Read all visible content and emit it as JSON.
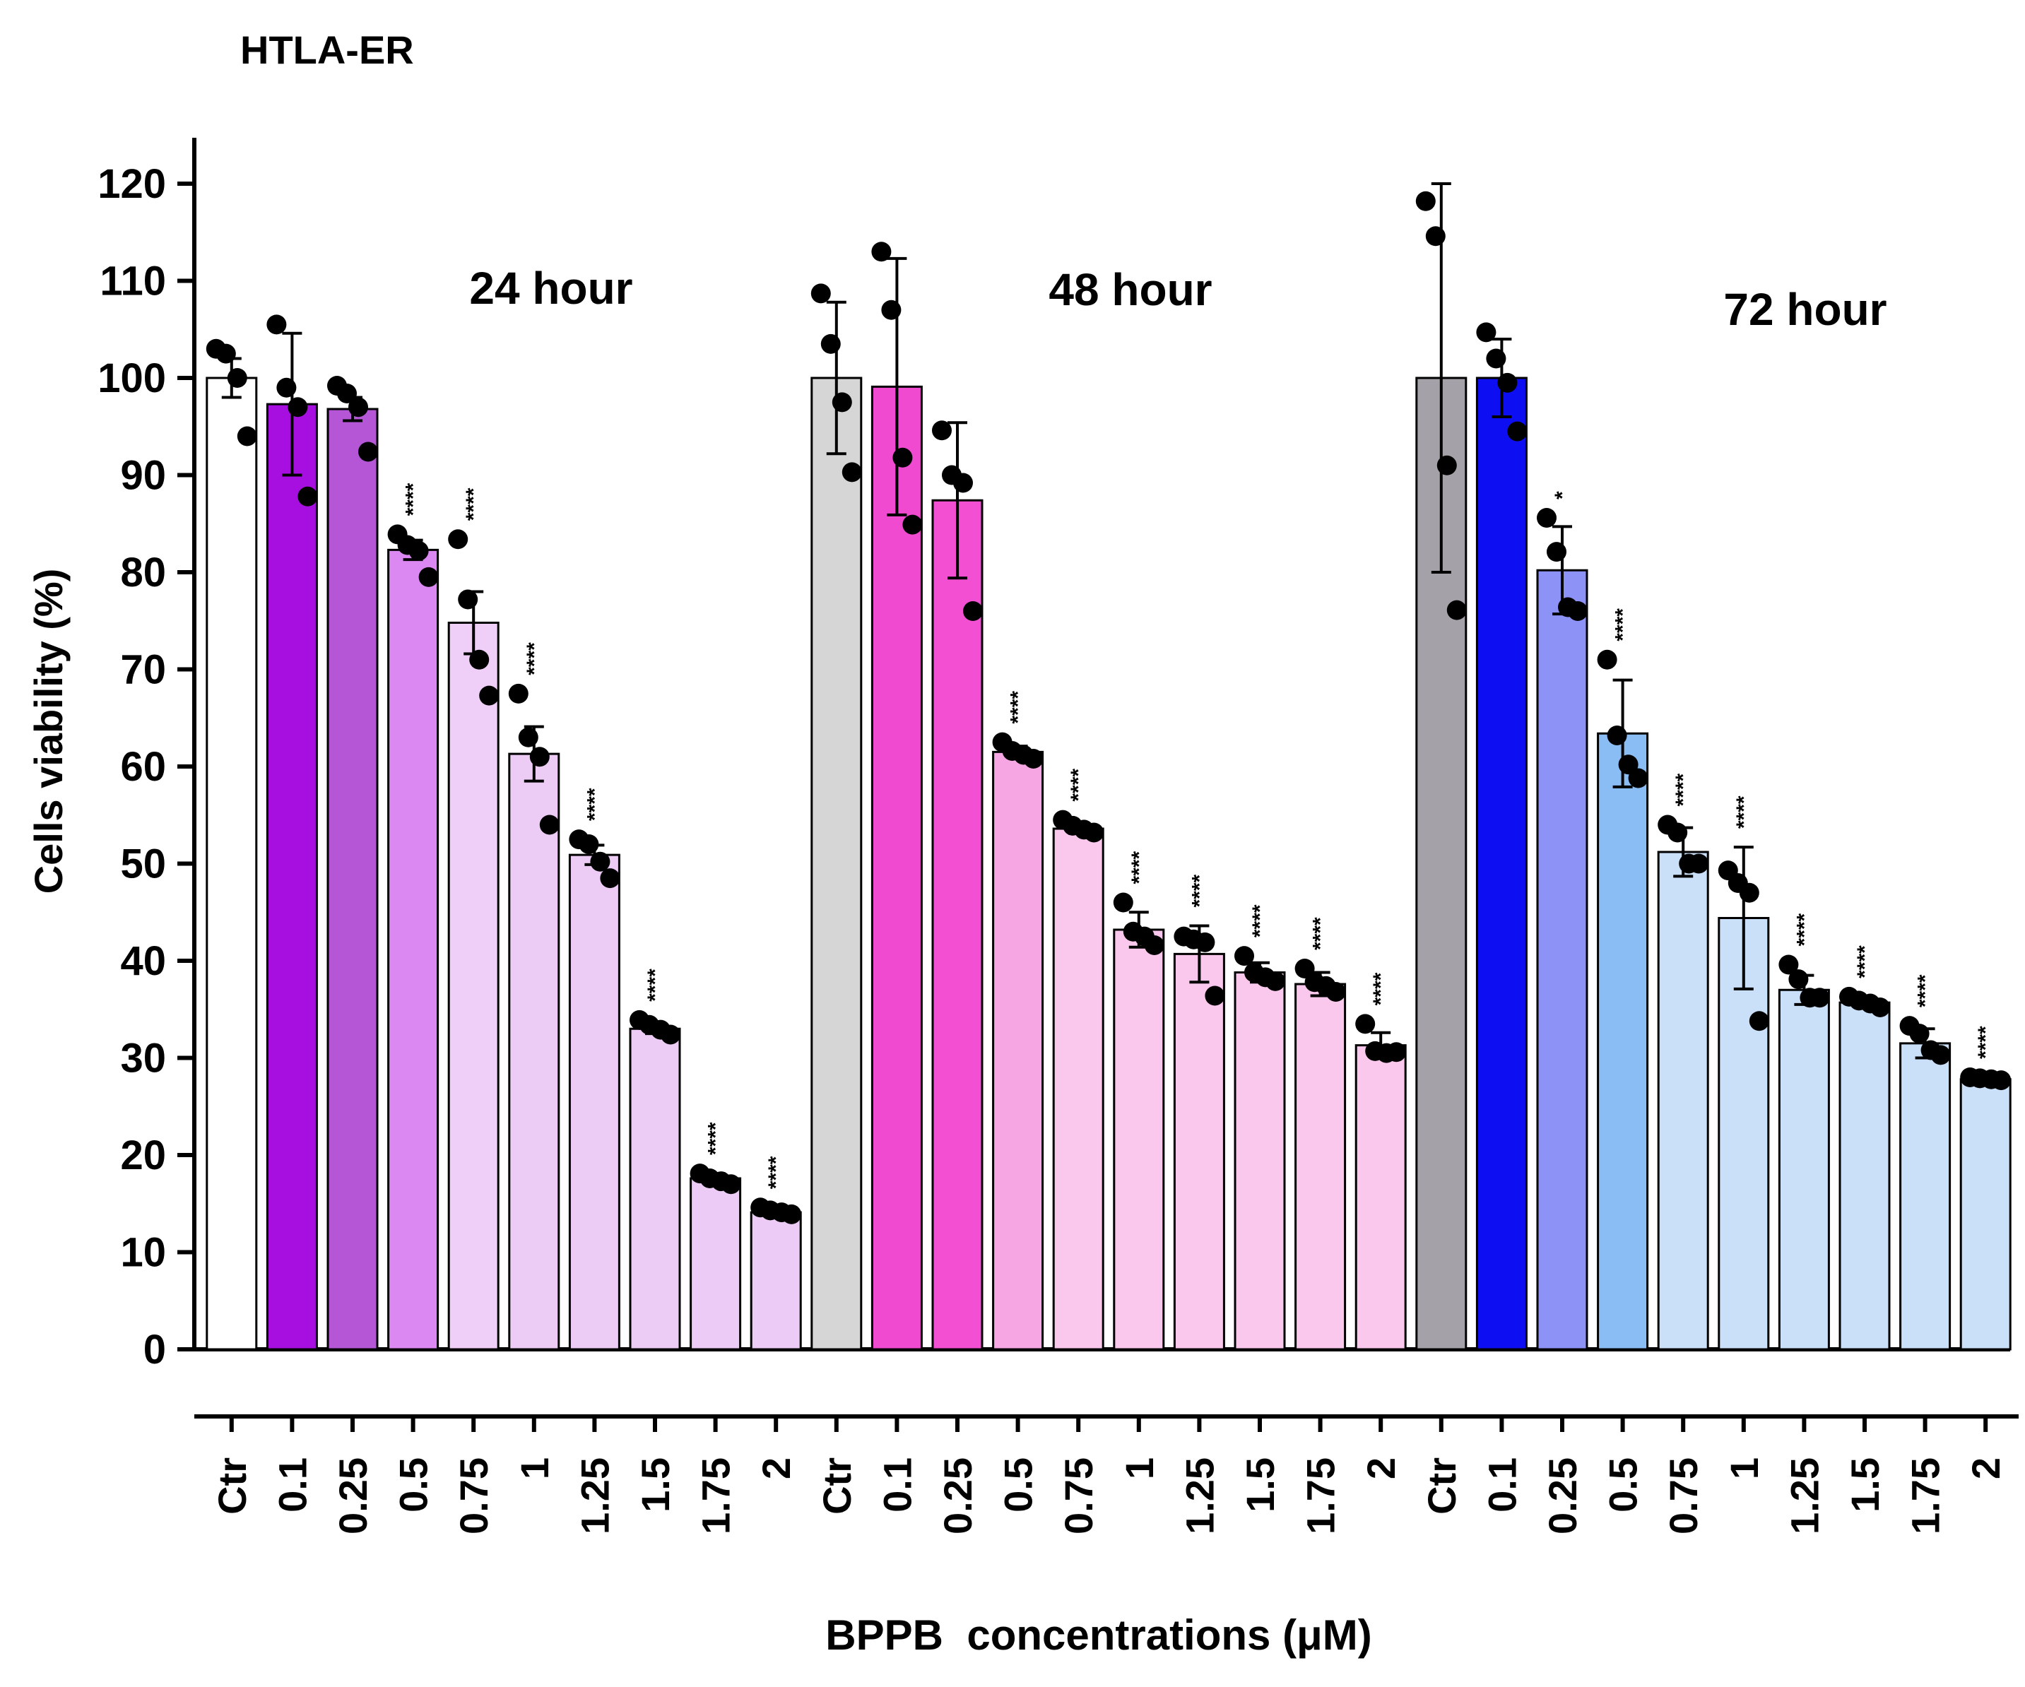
{
  "chart_data": {
    "type": "bar",
    "title": "HTLA-ER",
    "xlabel": "BPPB  concentrations (μM)",
    "ylabel": "Cells viability (%)",
    "ylim": [
      0,
      125
    ],
    "yticks": [
      0,
      10,
      20,
      30,
      40,
      50,
      60,
      70,
      80,
      90,
      100,
      110,
      120
    ],
    "error_bars": true,
    "individual_points": true,
    "groups": [
      {
        "label": "24 hour",
        "categories": [
          "Ctr",
          "0.1",
          "0.25",
          "0.5",
          "0.75",
          "1",
          "1.25",
          "1.5",
          "1.75",
          "2"
        ],
        "values": [
          100.0,
          97.3,
          96.8,
          82.3,
          74.8,
          61.3,
          50.9,
          33.0,
          17.6,
          14.1
        ],
        "errors": [
          2.0,
          7.3,
          1.2,
          1.0,
          3.2,
          2.8,
          1.0,
          0.5,
          0.5,
          0.3
        ],
        "significance": [
          "",
          "",
          "",
          "****",
          "****",
          "****",
          "****",
          "****",
          "****",
          "****"
        ],
        "colors": [
          "#ffffff",
          "#a60fdf",
          "#b556d6",
          "#dc88f2",
          "#efcef7",
          "#ecccf4",
          "#eccbf5",
          "#eccbf5",
          "#ecccf6",
          "#ecccf6"
        ],
        "points": [
          [
            103.0,
            102.5,
            100.0,
            94.0
          ],
          [
            105.5,
            99.0,
            97.0,
            87.8
          ],
          [
            99.2,
            98.4,
            97.0,
            92.4
          ],
          [
            83.9,
            82.8,
            82.2,
            79.5
          ],
          [
            83.4,
            77.2,
            71.0,
            67.3
          ],
          [
            67.5,
            63.0,
            61.0,
            54.0
          ],
          [
            52.5,
            52.0,
            50.2,
            48.5
          ],
          [
            33.9,
            33.4,
            32.9,
            32.4
          ],
          [
            18.1,
            17.6,
            17.3,
            17.0
          ],
          [
            14.6,
            14.3,
            14.1,
            13.9
          ]
        ]
      },
      {
        "label": "48 hour",
        "categories": [
          "Ctr",
          "0.1",
          "0.25",
          "0.5",
          "0.75",
          "1",
          "1.25",
          "1.5",
          "1.75",
          "2"
        ],
        "values": [
          100.0,
          99.1,
          87.4,
          61.5,
          53.6,
          43.2,
          40.7,
          38.8,
          37.6,
          31.3
        ],
        "errors": [
          7.8,
          13.2,
          8.0,
          0.6,
          0.5,
          1.8,
          2.9,
          1.0,
          1.2,
          1.3
        ],
        "significance": [
          "",
          "",
          "",
          "****",
          "****",
          "****",
          "****",
          "****",
          "****",
          "****"
        ],
        "colors": [
          "#d6d6d6",
          "#f04ad0",
          "#f24fd2",
          "#f6a6e3",
          "#f9c8ec",
          "#f9c8ec",
          "#f9c8ec",
          "#f9c8ec",
          "#f9c8ec",
          "#f9c8ec"
        ],
        "points": [
          [
            108.7,
            103.5,
            97.5,
            90.3
          ],
          [
            113.0,
            107.0,
            91.8,
            84.9
          ],
          [
            94.6,
            90.0,
            89.2,
            76.0
          ],
          [
            62.5,
            61.6,
            61.2,
            60.8
          ],
          [
            54.5,
            53.9,
            53.5,
            53.2
          ],
          [
            46.0,
            43.0,
            42.5,
            41.6
          ],
          [
            42.5,
            42.2,
            41.9,
            36.4
          ],
          [
            40.5,
            38.8,
            38.3,
            37.9
          ],
          [
            39.2,
            37.8,
            37.4,
            36.8
          ],
          [
            33.5,
            30.7,
            30.5,
            30.6
          ]
        ]
      },
      {
        "label": "72 hour",
        "categories": [
          "Ctr",
          "0.1",
          "0.25",
          "0.5",
          "0.75",
          "1",
          "1.25",
          "1.5",
          "1.75",
          "2"
        ],
        "values": [
          100.0,
          100.0,
          80.2,
          63.4,
          51.2,
          44.4,
          37.0,
          35.7,
          31.5,
          27.8
        ],
        "errors": [
          20.0,
          4.0,
          4.5,
          5.5,
          2.5,
          7.3,
          1.5,
          0.4,
          1.5,
          0.2
        ],
        "significance": [
          "",
          "",
          "*",
          "****",
          "****",
          "****",
          "****",
          "****",
          "****",
          "****"
        ],
        "colors": [
          "#a4a2a8",
          "#0e0ef2",
          "#8d92f7",
          "#8bbdf5",
          "#cae0f9",
          "#cae0f9",
          "#cae0f9",
          "#cae0f9",
          "#cae0f9",
          "#cae0f9"
        ],
        "points": [
          [
            118.2,
            114.6,
            91.0,
            76.1
          ],
          [
            104.7,
            102.0,
            99.5,
            94.5
          ],
          [
            85.6,
            82.1,
            76.4,
            76.0
          ],
          [
            71.0,
            63.2,
            60.2,
            58.8
          ],
          [
            54.0,
            53.2,
            50.0,
            50.0
          ],
          [
            49.3,
            48.0,
            47.0,
            33.8
          ],
          [
            39.6,
            38.1,
            36.2,
            36.2
          ],
          [
            36.3,
            35.9,
            35.6,
            35.2
          ],
          [
            33.3,
            32.5,
            30.8,
            30.3
          ],
          [
            28.0,
            27.9,
            27.8,
            27.7
          ]
        ]
      }
    ]
  }
}
